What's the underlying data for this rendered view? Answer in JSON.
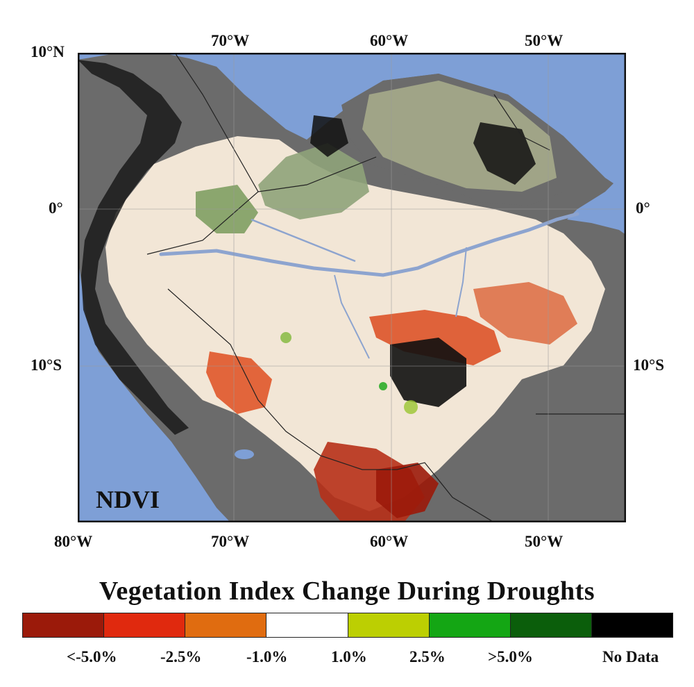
{
  "map": {
    "label": "NDVI",
    "top_lon_labels": [
      "70°W",
      "60°W",
      "50°W"
    ],
    "bottom_lon_labels": [
      "80°W",
      "70°W",
      "60°W",
      "50°W"
    ],
    "left_lat_labels": [
      "10°N",
      "0°",
      "10°S"
    ],
    "right_lat_labels": [
      "0°",
      "10°S"
    ],
    "colors": {
      "ocean": "#7e9fd6",
      "land_no_forest": "#6b6b6b",
      "andes_no_data": "#1a1a1a",
      "neutral": "#f7ecde"
    }
  },
  "legend": {
    "title": "Vegetation Index Change During Droughts",
    "swatches": [
      {
        "color": "#9b1a0a"
      },
      {
        "color": "#e0290e"
      },
      {
        "color": "#e06c10"
      },
      {
        "color": "#ffffff"
      },
      {
        "color": "#bccf02"
      },
      {
        "color": "#14a614"
      },
      {
        "color": "#0b5e0b"
      },
      {
        "color": "#000000"
      }
    ],
    "tick_labels": [
      "<-5.0%",
      "-2.5%",
      "-1.0%",
      "1.0%",
      "2.5%",
      ">5.0%",
      "No Data"
    ]
  }
}
